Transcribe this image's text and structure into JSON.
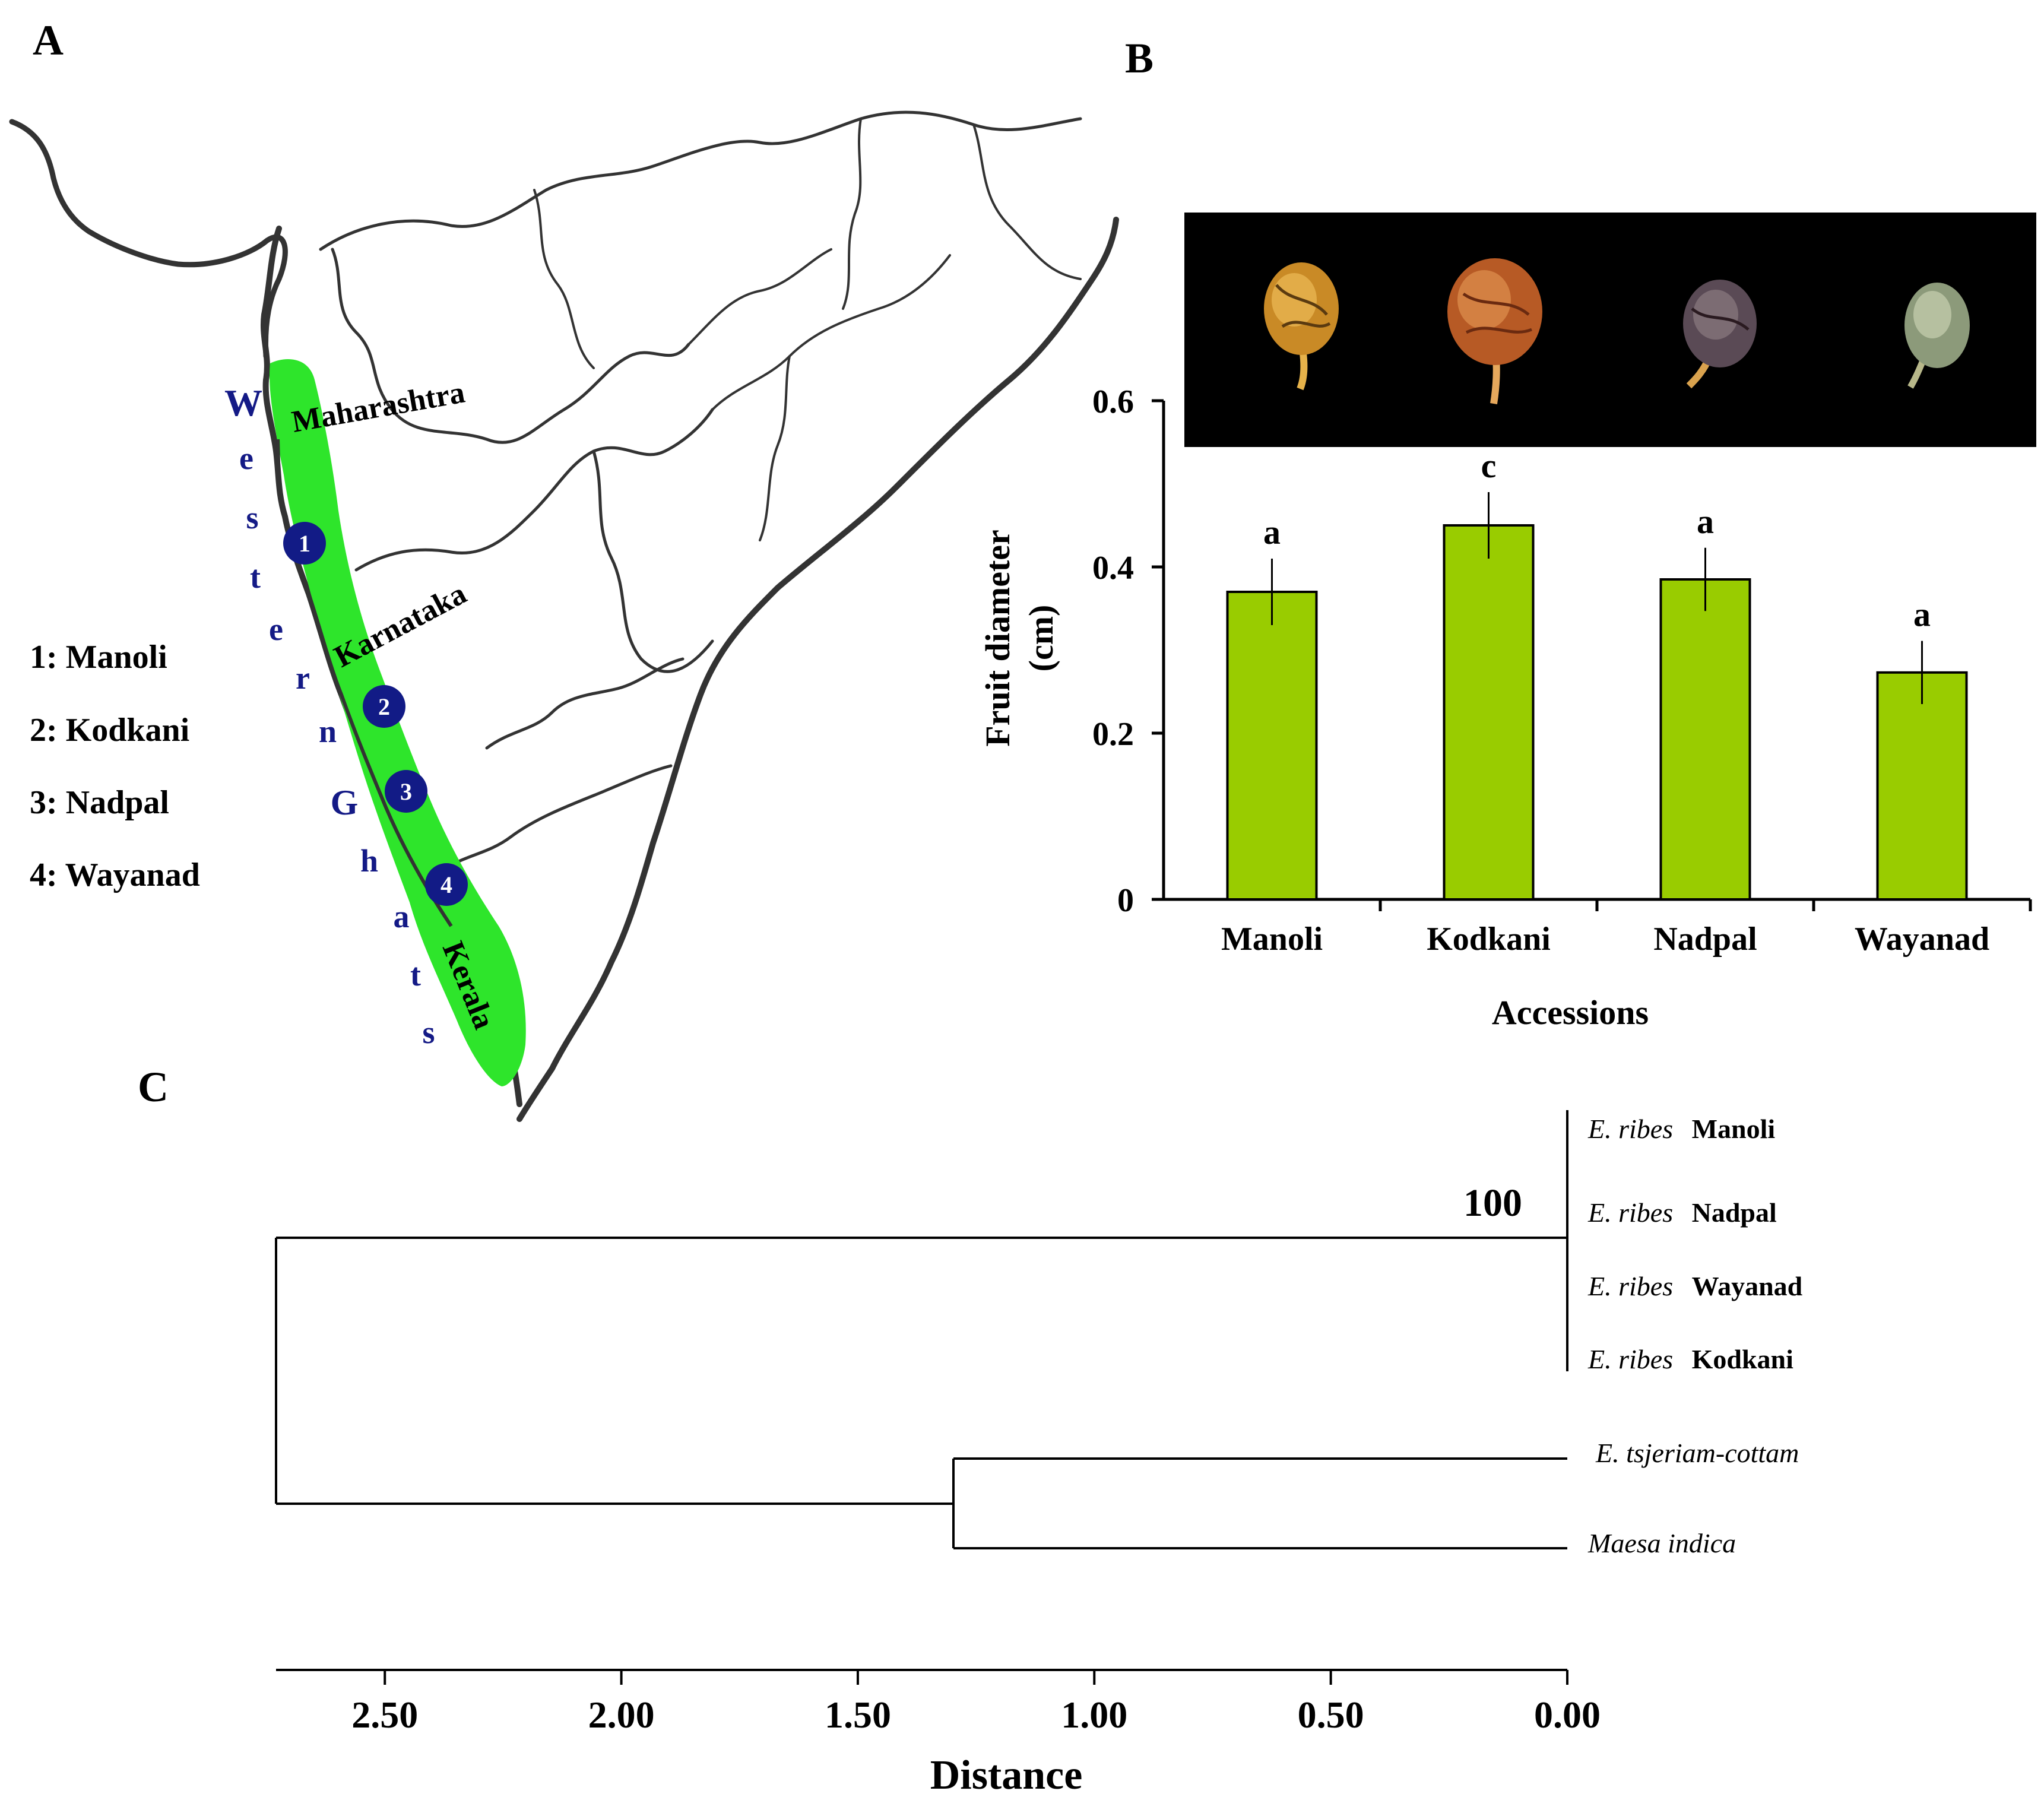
{
  "panels": {
    "a": "A",
    "b": "B",
    "c": "C"
  },
  "map": {
    "legend": [
      "1: Manoli",
      "2: Kodkani",
      "3: Nadpal",
      "4: Wayanad"
    ],
    "markers": [
      "1",
      "2",
      "3",
      "4"
    ],
    "region_letters": [
      "W",
      "e",
      "s",
      "t",
      "e",
      "r",
      "n",
      "G",
      "h",
      "a",
      "t",
      "s"
    ],
    "states": [
      "Maharashtra",
      "Karnataka",
      "Kerala"
    ],
    "colors": {
      "ghats": "#2ee52b",
      "marker": "#121b86",
      "letters": "#141a86",
      "border": "#333333"
    }
  },
  "chart_data": {
    "type": "bar",
    "title": "",
    "categories": [
      "Manoli",
      "Kodkani",
      "Nadpal",
      "Wayanad"
    ],
    "values": [
      0.37,
      0.45,
      0.385,
      0.273
    ],
    "errors": [
      0.04,
      0.04,
      0.038,
      0.038
    ],
    "significance": [
      "a",
      "c",
      "a",
      "a"
    ],
    "xlabel": "Accessions",
    "ylabel_line1": "Fruit diameter",
    "ylabel_line2": "(cm)",
    "ylim": [
      0,
      0.6
    ],
    "yticks": [
      0,
      0.2,
      0.4,
      0.6
    ],
    "ytick_labels": [
      "0",
      "0.2",
      "0.4",
      "0.6"
    ],
    "bar_color": "#99cc00",
    "grid": false
  },
  "dendrogram": {
    "bootstrap": "100",
    "leaves": [
      {
        "genus": "E. ribes",
        "name": "Manoli"
      },
      {
        "genus": "E. ribes",
        "name": "Nadpal"
      },
      {
        "genus": "E. ribes",
        "name": "Wayanad"
      },
      {
        "genus": "E. ribes",
        "name": "Kodkani"
      },
      {
        "genus": "E. tsjeriam-cottam",
        "name": ""
      },
      {
        "genus": "Maesa indica",
        "name": ""
      }
    ],
    "root_distance": 2.73,
    "outgroup_node_distance": 1.3,
    "axis_ticks": [
      2.5,
      2.0,
      1.5,
      1.0,
      0.5,
      0.0
    ],
    "axis_tick_labels": [
      "2.50",
      "2.00",
      "1.50",
      "1.00",
      "0.50",
      "0.00"
    ],
    "axis_label": "Distance"
  }
}
